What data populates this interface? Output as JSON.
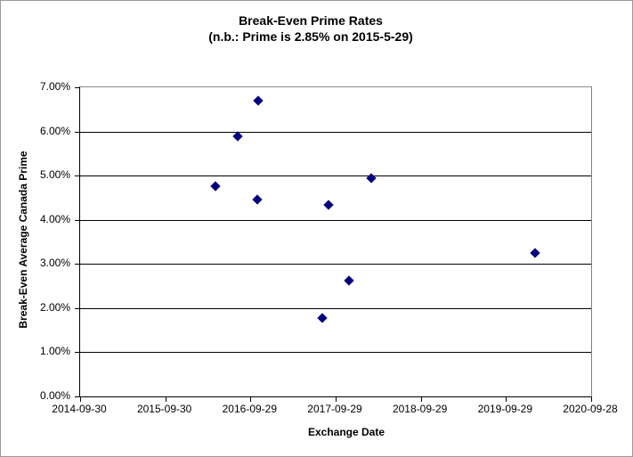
{
  "chart": {
    "title_line1": "Break-Even Prime Rates",
    "title_line2": "(n.b.: Prime is 2.85% on 2015-5-29)",
    "x_axis_label": "Exchange Date",
    "y_axis_label": "Break-Even Average Canada Prime",
    "colors": {
      "marker": "#000080",
      "gridline": "#000000",
      "axis": "#000000",
      "plot_border": "#8c8c8c",
      "chart_border": "#9a9a9a"
    }
  },
  "chart_data": {
    "type": "scatter",
    "title": "Break-Even Prime Rates",
    "subtitle": "(n.b.: Prime is 2.85% on 2015-5-29)",
    "xlabel": "Exchange Date",
    "ylabel": "Break-Even Average Canada Prime",
    "legend": "none",
    "grid": "horizontal",
    "x_min": "2014-09-30",
    "x_max": "2020-09-28",
    "x_range_days": 2190,
    "ylim_percent": [
      0,
      7
    ],
    "x_ticks": [
      "2014-09-30",
      "2015-09-30",
      "2016-09-29",
      "2017-09-29",
      "2018-09-29",
      "2019-09-29",
      "2020-09-28"
    ],
    "y_ticks": [
      "0.00%",
      "1.00%",
      "2.00%",
      "3.00%",
      "4.00%",
      "5.00%",
      "6.00%",
      "7.00%"
    ],
    "points": [
      {
        "date": "2016-05-01",
        "value_percent": 4.77
      },
      {
        "date": "2016-08-04",
        "value_percent": 5.9
      },
      {
        "date": "2016-10-30",
        "value_percent": 4.45
      },
      {
        "date": "2016-11-01",
        "value_percent": 6.7
      },
      {
        "date": "2017-08-03",
        "value_percent": 1.78
      },
      {
        "date": "2017-08-31",
        "value_percent": 4.33
      },
      {
        "date": "2017-11-27",
        "value_percent": 2.62
      },
      {
        "date": "2018-02-27",
        "value_percent": 4.95
      },
      {
        "date": "2020-01-30",
        "value_percent": 3.25
      }
    ]
  }
}
